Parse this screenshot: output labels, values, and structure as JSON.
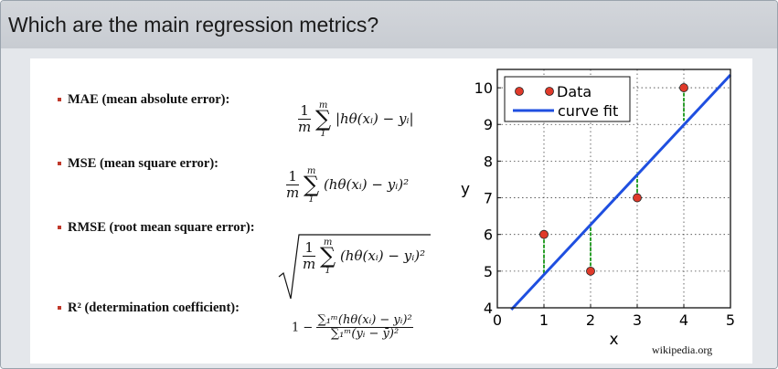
{
  "title": "Which are the main regression metrics?",
  "bullets": [
    "MAE (mean absolute error):",
    "MSE (mean square error):",
    "RMSE (root mean square error):",
    "R² (determination coefficient):"
  ],
  "formulas": {
    "one": "1",
    "m": "m",
    "lower": "1",
    "mae_body": "|hθ(xᵢ) − yᵢ|",
    "sq_body": "(hθ(xᵢ) − yᵢ)²",
    "r2_prefix": "1 −",
    "r2_num": "∑₁ᵐ(hθ(xᵢ) − yᵢ)²",
    "r2_den": "∑₁ᵐ(yᵢ − ȳ)²"
  },
  "source": "wikipedia.org",
  "colors": {
    "fit_line": "#1f4fe0",
    "residual": "#2ca02c",
    "point": "#e03a2a"
  },
  "chart_data": {
    "type": "scatter",
    "xlabel": "x",
    "ylabel": "y",
    "xlim": [
      0,
      5
    ],
    "ylim": [
      4,
      10.5
    ],
    "xticks": [
      "0",
      "1",
      "2",
      "3",
      "4",
      "5"
    ],
    "yticks": [
      "4",
      "5",
      "6",
      "7",
      "8",
      "9",
      "10"
    ],
    "grid": true,
    "legend": "top-left",
    "series": [
      {
        "name": "Data",
        "kind": "points",
        "x": [
          1,
          2,
          3,
          4
        ],
        "y": [
          6,
          5,
          7,
          10
        ]
      },
      {
        "name": "curve fit",
        "kind": "line",
        "x": [
          0.3,
          5
        ],
        "y": [
          3.95,
          10.35
        ]
      }
    ],
    "residuals": {
      "x": [
        1,
        2,
        3,
        4
      ],
      "y_data": [
        6,
        5,
        7,
        10
      ],
      "y_fit": [
        4.9,
        6.3,
        7.7,
        9.1
      ]
    }
  }
}
